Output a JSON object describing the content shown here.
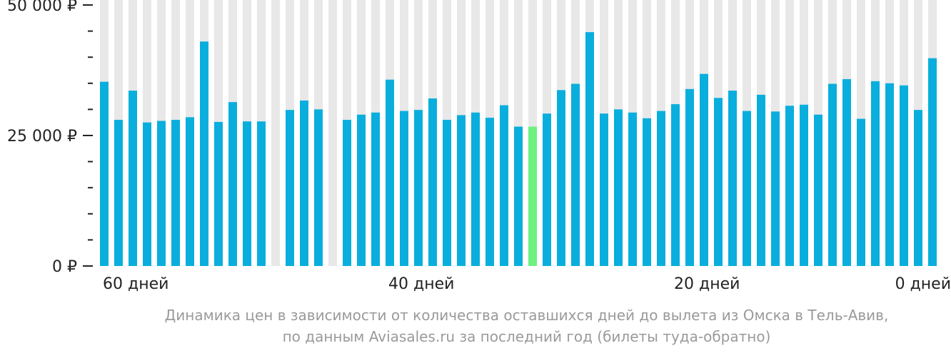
{
  "chart_data": {
    "type": "bar",
    "x_unit": "days before departure",
    "x_range": [
      62,
      0
    ],
    "x_ticks": [
      {
        "label": "60 дней",
        "day": 60
      },
      {
        "label": "40 дней",
        "day": 40
      },
      {
        "label": "20 дней",
        "day": 20
      },
      {
        "label": "0 дней",
        "day": 0
      }
    ],
    "y_ticks": [
      {
        "label": "50 000 ₽",
        "value": 50000
      },
      {
        "label": "25 000 ₽",
        "value": 25000
      },
      {
        "label": "0 ₽",
        "value": 0
      }
    ],
    "ylim": [
      0,
      50000
    ],
    "y_minor_step": 5000,
    "grid": "alternating vertical bands",
    "values": [
      35300,
      28000,
      33600,
      27500,
      27800,
      28000,
      28500,
      43000,
      27600,
      31400,
      27700,
      27700,
      null,
      29900,
      31700,
      30000,
      null,
      28000,
      29000,
      29400,
      35700,
      29700,
      29900,
      32100,
      28000,
      28900,
      29400,
      28400,
      30800,
      26700,
      26700,
      29200,
      33700,
      34900,
      44800,
      29200,
      30000,
      29400,
      28300,
      29700,
      31000,
      33900,
      36800,
      32200,
      33600,
      29700,
      32800,
      29600,
      30700,
      30900,
      29000,
      34900,
      35800,
      28200,
      35400,
      35000,
      34600,
      29900,
      39800
    ],
    "highlight_index": 30,
    "colors": {
      "bar": "#0AAEDD",
      "highlight": "#6CF281",
      "band": "#E8E8E8",
      "axis": "#222222"
    },
    "caption_line1": "Динамика цен в зависимости от количества оставшихся дней до вылета из Омска в Тель-Авив,",
    "caption_line2": "по данным Aviasales.ru за последний год (билеты туда-обратно)"
  }
}
